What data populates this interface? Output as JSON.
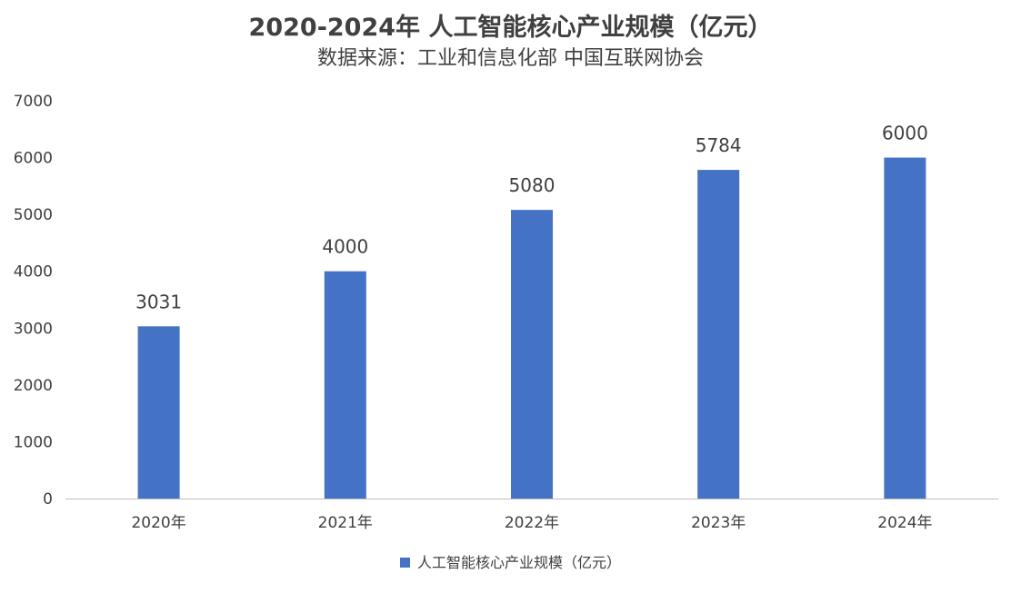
{
  "chart": {
    "title": "2020-2024年 人工智能核心产业规模（亿元）",
    "subtitle": "数据来源：工业和信息化部 中国互联网协会"
  },
  "colors": {
    "bar": "#4472C4",
    "axis": "#BFBFBF",
    "text": "#404040"
  },
  "chart_data": {
    "type": "bar",
    "title": "2020-2024年 人工智能核心产业规模（亿元）",
    "subtitle": "数据来源：工业和信息化部 中国互联网协会",
    "categories": [
      "2020年",
      "2021年",
      "2022年",
      "2023年",
      "2024年"
    ],
    "series": [
      {
        "name": "人工智能核心产业规模（亿元）",
        "values": [
          3031,
          4000,
          5080,
          5784,
          6000
        ]
      }
    ],
    "data_labels": [
      "3031",
      "4000",
      "5080",
      "5784",
      "6000"
    ],
    "ylim": [
      0,
      7000
    ],
    "yticks": [
      0,
      1000,
      2000,
      3000,
      4000,
      5000,
      6000,
      7000
    ],
    "ytick_labels": [
      "0",
      "1000",
      "2000",
      "3000",
      "4000",
      "5000",
      "6000",
      "7000"
    ],
    "grid": false,
    "legend_position": "bottom"
  }
}
